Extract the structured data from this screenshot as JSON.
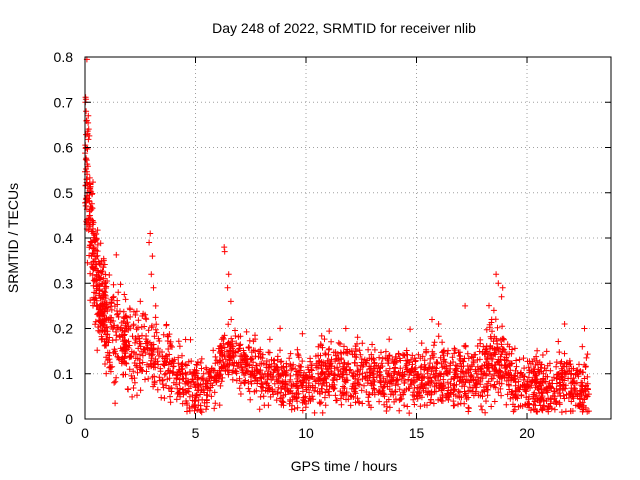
{
  "chart_data": {
    "type": "scatter",
    "title": "Day 248 of 2022, SRMTID for receiver nlib",
    "xlabel": "GPS time / hours",
    "ylabel": "SRMTID / TECUs",
    "xlim": [
      0,
      23.8
    ],
    "ylim": [
      0,
      0.8
    ],
    "xticks": [
      0,
      5,
      10,
      15,
      20
    ],
    "yticks": [
      0,
      0.1,
      0.2,
      0.3,
      0.4,
      0.5,
      0.6,
      0.7,
      0.8
    ],
    "xtick_labels": [
      "0",
      "5",
      "10",
      "15",
      "20"
    ],
    "ytick_labels": [
      "0",
      "0.1",
      "0.2",
      "0.3",
      "0.4",
      "0.5",
      "0.6",
      "0.7",
      "0.8"
    ],
    "grid": true,
    "marker": "+",
    "color": "#ff0000",
    "x_range_of_data": [
      0,
      22.8
    ],
    "trend": [
      {
        "x": 0.0,
        "y": 0.62
      },
      {
        "x": 0.1,
        "y": 0.5
      },
      {
        "x": 0.3,
        "y": 0.4
      },
      {
        "x": 0.6,
        "y": 0.28
      },
      {
        "x": 1.0,
        "y": 0.2
      },
      {
        "x": 2.0,
        "y": 0.16
      },
      {
        "x": 3.0,
        "y": 0.14
      },
      {
        "x": 4.0,
        "y": 0.11
      },
      {
        "x": 5.0,
        "y": 0.07
      },
      {
        "x": 5.5,
        "y": 0.06
      },
      {
        "x": 6.3,
        "y": 0.14
      },
      {
        "x": 7.0,
        "y": 0.12
      },
      {
        "x": 8.0,
        "y": 0.1
      },
      {
        "x": 9.0,
        "y": 0.08
      },
      {
        "x": 10.0,
        "y": 0.07
      },
      {
        "x": 11.0,
        "y": 0.1
      },
      {
        "x": 12.0,
        "y": 0.1
      },
      {
        "x": 13.0,
        "y": 0.09
      },
      {
        "x": 14.0,
        "y": 0.09
      },
      {
        "x": 15.0,
        "y": 0.09
      },
      {
        "x": 16.0,
        "y": 0.1
      },
      {
        "x": 17.0,
        "y": 0.09
      },
      {
        "x": 18.0,
        "y": 0.1
      },
      {
        "x": 18.7,
        "y": 0.14
      },
      {
        "x": 19.5,
        "y": 0.08
      },
      {
        "x": 20.5,
        "y": 0.07
      },
      {
        "x": 21.5,
        "y": 0.08
      },
      {
        "x": 22.0,
        "y": 0.07
      },
      {
        "x": 22.8,
        "y": 0.06
      }
    ],
    "spread": [
      {
        "x": 0.0,
        "s": 0.08
      },
      {
        "x": 1.0,
        "s": 0.05
      },
      {
        "x": 3.0,
        "s": 0.045
      },
      {
        "x": 5.0,
        "s": 0.03
      },
      {
        "x": 8.0,
        "s": 0.03
      },
      {
        "x": 16.0,
        "s": 0.035
      },
      {
        "x": 22.8,
        "s": 0.035
      }
    ],
    "highlights": [
      {
        "x": 0.02,
        "y": 0.7
      },
      {
        "x": 0.05,
        "y": 0.68
      },
      {
        "x": 0.08,
        "y": 0.66
      },
      {
        "x": 0.04,
        "y": 0.6
      },
      {
        "x": 0.12,
        "y": 0.63
      },
      {
        "x": 0.15,
        "y": 0.67
      },
      {
        "x": 0.07,
        "y": 0.53
      },
      {
        "x": 0.1,
        "y": 0.5
      },
      {
        "x": 0.2,
        "y": 0.48
      },
      {
        "x": 0.25,
        "y": 0.47
      },
      {
        "x": 0.35,
        "y": 0.43
      },
      {
        "x": 0.4,
        "y": 0.38
      },
      {
        "x": 0.3,
        "y": 0.36
      },
      {
        "x": 0.85,
        "y": 0.35
      },
      {
        "x": 0.9,
        "y": 0.3
      },
      {
        "x": 2.95,
        "y": 0.41
      },
      {
        "x": 2.9,
        "y": 0.39
      },
      {
        "x": 3.05,
        "y": 0.36
      },
      {
        "x": 3.0,
        "y": 0.32
      },
      {
        "x": 3.1,
        "y": 0.29
      },
      {
        "x": 3.2,
        "y": 0.25
      },
      {
        "x": 6.3,
        "y": 0.38
      },
      {
        "x": 6.32,
        "y": 0.37
      },
      {
        "x": 6.5,
        "y": 0.32
      },
      {
        "x": 6.45,
        "y": 0.29
      },
      {
        "x": 6.6,
        "y": 0.26
      },
      {
        "x": 11.8,
        "y": 0.2
      },
      {
        "x": 17.2,
        "y": 0.25
      },
      {
        "x": 18.6,
        "y": 0.32
      },
      {
        "x": 18.7,
        "y": 0.3
      },
      {
        "x": 18.9,
        "y": 0.29
      },
      {
        "x": 18.85,
        "y": 0.27
      },
      {
        "x": 18.5,
        "y": 0.24
      },
      {
        "x": 18.4,
        "y": 0.22
      },
      {
        "x": 15.7,
        "y": 0.22
      },
      {
        "x": 16.0,
        "y": 0.21
      },
      {
        "x": 21.7,
        "y": 0.21
      },
      {
        "x": 22.6,
        "y": 0.2
      },
      {
        "x": 22.5,
        "y": 0.16
      },
      {
        "x": 1.5,
        "y": 0.28
      },
      {
        "x": 1.3,
        "y": 0.27
      },
      {
        "x": 2.5,
        "y": 0.26
      }
    ],
    "points_approx_count": 2600
  }
}
